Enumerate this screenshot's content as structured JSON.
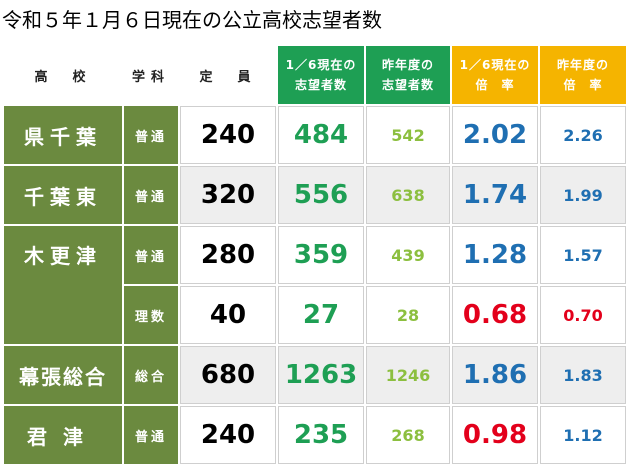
{
  "title": "令和５年１月６日現在の公立高校志望者数",
  "headers": {
    "school": "高　校",
    "dept": "学科",
    "capacity": "定　員",
    "applicants_line1": "1／6現在の",
    "applicants_line2": "志望者数",
    "prev_applicants_line1": "昨年度の",
    "prev_applicants_line2": "志望者数",
    "rate_line1": "1／6現在の",
    "rate_line2": "倍　率",
    "prev_rate_line1": "昨年度の",
    "prev_rate_line2": "倍　率"
  },
  "colors": {
    "school_bg": "#6b8a3f",
    "header_green": "#1e9f54",
    "header_yellow": "#f5b400",
    "rate_normal": "#1f6fb2",
    "rate_low": "#e3001b"
  },
  "rows": [
    {
      "school": "県千葉",
      "dept": "普通",
      "capacity": "240",
      "applicants": "484",
      "prev_applicants": "542",
      "rate": "2.02",
      "prev_rate": "2.26"
    },
    {
      "school": "千葉東",
      "dept": "普通",
      "capacity": "320",
      "applicants": "556",
      "prev_applicants": "638",
      "rate": "1.74",
      "prev_rate": "1.99"
    },
    {
      "school": "木更津",
      "dept": "普通",
      "capacity": "280",
      "applicants": "359",
      "prev_applicants": "439",
      "rate": "1.28",
      "prev_rate": "1.57"
    },
    {
      "school": "",
      "dept": "理数",
      "capacity": "40",
      "applicants": "27",
      "prev_applicants": "28",
      "rate": "0.68",
      "prev_rate": "0.70"
    },
    {
      "school": "幕張総合",
      "dept": "総合",
      "capacity": "680",
      "applicants": "1263",
      "prev_applicants": "1246",
      "rate": "1.86",
      "prev_rate": "1.83"
    },
    {
      "school": "君津",
      "dept": "普通",
      "capacity": "240",
      "applicants": "235",
      "prev_applicants": "268",
      "rate": "0.98",
      "prev_rate": "1.12"
    }
  ]
}
